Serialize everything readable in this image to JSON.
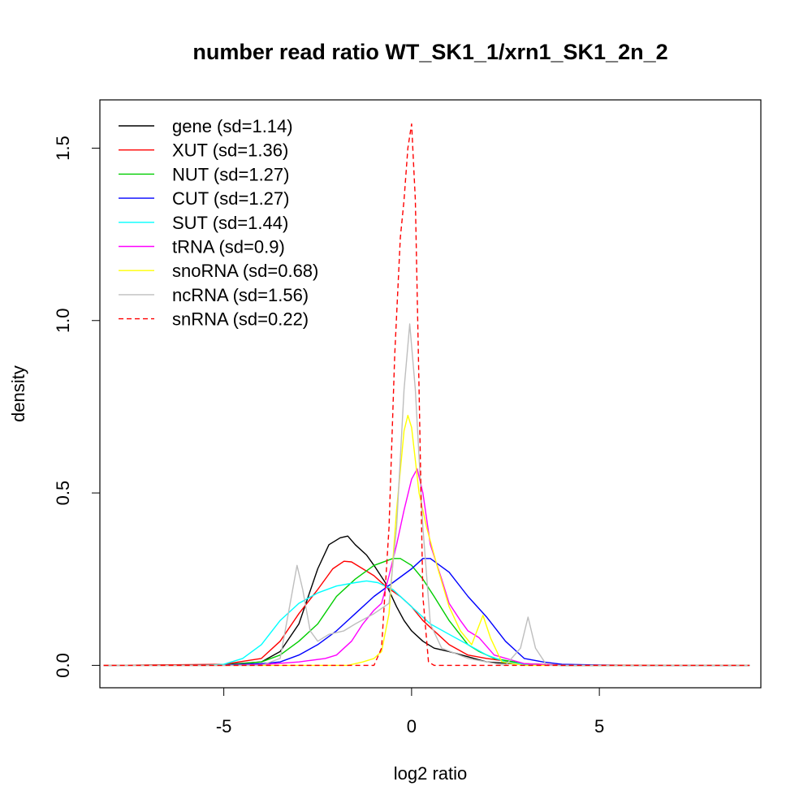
{
  "chart_data": {
    "type": "line",
    "title": "number read ratio WT_SK1_1/xrn1_SK1_2n_2",
    "xlabel": "log2 ratio",
    "ylabel": "density",
    "xlim": [
      -8.3,
      9.3
    ],
    "ylim": [
      -0.065,
      1.64
    ],
    "x_ticks": [
      -5,
      0,
      5
    ],
    "x_tick_labels": [
      "-5",
      "0",
      "5"
    ],
    "y_ticks": [
      0.0,
      0.5,
      1.0,
      1.5
    ],
    "y_tick_labels": [
      "0.0",
      "0.5",
      "1.0",
      "1.5"
    ],
    "grid": false,
    "legend_position": "top-left",
    "series": [
      {
        "name": "gene (sd=1.14)",
        "color": "#000000",
        "dash": "solid",
        "points": [
          [
            -8.2,
            0
          ],
          [
            -5,
            0.002
          ],
          [
            -4,
            0.01
          ],
          [
            -3.5,
            0.04
          ],
          [
            -3,
            0.12
          ],
          [
            -2.5,
            0.28
          ],
          [
            -2.2,
            0.35
          ],
          [
            -1.9,
            0.37
          ],
          [
            -1.7,
            0.375
          ],
          [
            -1.5,
            0.35
          ],
          [
            -1.2,
            0.32
          ],
          [
            -1,
            0.29
          ],
          [
            -0.7,
            0.24
          ],
          [
            -0.4,
            0.17
          ],
          [
            -0.2,
            0.13
          ],
          [
            0,
            0.1
          ],
          [
            0.3,
            0.07
          ],
          [
            0.6,
            0.05
          ],
          [
            1,
            0.04
          ],
          [
            1.5,
            0.025
          ],
          [
            2,
            0.01
          ],
          [
            3,
            0.002
          ],
          [
            4,
            0
          ],
          [
            9,
            0
          ]
        ]
      },
      {
        "name": "XUT (sd=1.36)",
        "color": "#ff0000",
        "dash": "solid",
        "points": [
          [
            -8.2,
            0
          ],
          [
            -5,
            0.003
          ],
          [
            -4,
            0.02
          ],
          [
            -3.5,
            0.07
          ],
          [
            -3,
            0.15
          ],
          [
            -2.5,
            0.22
          ],
          [
            -2.1,
            0.28
          ],
          [
            -1.8,
            0.302
          ],
          [
            -1.6,
            0.3
          ],
          [
            -1.3,
            0.28
          ],
          [
            -1,
            0.26
          ],
          [
            -0.7,
            0.23
          ],
          [
            -0.3,
            0.2
          ],
          [
            0,
            0.17
          ],
          [
            0.3,
            0.13
          ],
          [
            0.7,
            0.09
          ],
          [
            1,
            0.06
          ],
          [
            1.5,
            0.03
          ],
          [
            2,
            0.02
          ],
          [
            3,
            0.005
          ],
          [
            4,
            0.001
          ],
          [
            9,
            0
          ]
        ]
      },
      {
        "name": "NUT (sd=1.27)",
        "color": "#00cd00",
        "dash": "solid",
        "points": [
          [
            -8.2,
            0
          ],
          [
            -5,
            0.001
          ],
          [
            -4,
            0.01
          ],
          [
            -3.5,
            0.03
          ],
          [
            -3,
            0.07
          ],
          [
            -2.5,
            0.12
          ],
          [
            -2,
            0.2
          ],
          [
            -1.5,
            0.25
          ],
          [
            -1,
            0.29
          ],
          [
            -0.5,
            0.31
          ],
          [
            -0.3,
            0.31
          ],
          [
            0,
            0.29
          ],
          [
            0.3,
            0.25
          ],
          [
            0.6,
            0.2
          ],
          [
            1,
            0.13
          ],
          [
            1.5,
            0.06
          ],
          [
            1.8,
            0.04
          ],
          [
            2.2,
            0.02
          ],
          [
            3,
            0.005
          ],
          [
            4,
            0
          ],
          [
            9,
            0
          ]
        ]
      },
      {
        "name": "CUT (sd=1.27)",
        "color": "#0000ff",
        "dash": "solid",
        "points": [
          [
            -8.2,
            0
          ],
          [
            -5,
            0.001
          ],
          [
            -4,
            0.005
          ],
          [
            -3.5,
            0.01
          ],
          [
            -3,
            0.03
          ],
          [
            -2.5,
            0.06
          ],
          [
            -2,
            0.1
          ],
          [
            -1.5,
            0.15
          ],
          [
            -1,
            0.2
          ],
          [
            -0.5,
            0.24
          ],
          [
            0,
            0.28
          ],
          [
            0.3,
            0.31
          ],
          [
            0.5,
            0.31
          ],
          [
            1,
            0.27
          ],
          [
            1.5,
            0.2
          ],
          [
            2,
            0.14
          ],
          [
            2.5,
            0.07
          ],
          [
            3,
            0.02
          ],
          [
            3.5,
            0.01
          ],
          [
            4,
            0.003
          ],
          [
            5,
            0.001
          ],
          [
            6,
            0
          ],
          [
            9,
            0
          ]
        ]
      },
      {
        "name": "SUT (sd=1.44)",
        "color": "#00ffff",
        "dash": "solid",
        "points": [
          [
            -8.2,
            0
          ],
          [
            -5.5,
            0
          ],
          [
            -5,
            0.003
          ],
          [
            -4.5,
            0.02
          ],
          [
            -4,
            0.06
          ],
          [
            -3.5,
            0.13
          ],
          [
            -3,
            0.18
          ],
          [
            -2.5,
            0.21
          ],
          [
            -2,
            0.23
          ],
          [
            -1.5,
            0.24
          ],
          [
            -1.2,
            0.245
          ],
          [
            -0.9,
            0.24
          ],
          [
            -0.5,
            0.22
          ],
          [
            -0.2,
            0.19
          ],
          [
            0.1,
            0.16
          ],
          [
            0.5,
            0.12
          ],
          [
            1,
            0.09
          ],
          [
            1.5,
            0.06
          ],
          [
            2,
            0.03
          ],
          [
            2.5,
            0.01
          ],
          [
            3,
            0.003
          ],
          [
            4,
            0
          ],
          [
            9,
            0
          ]
        ]
      },
      {
        "name": "tRNA (sd=0.9)",
        "color": "#ff00ff",
        "dash": "solid",
        "points": [
          [
            -8.2,
            0
          ],
          [
            -5,
            0
          ],
          [
            -4,
            0.002
          ],
          [
            -3,
            0.01
          ],
          [
            -2.3,
            0.02
          ],
          [
            -2,
            0.03
          ],
          [
            -1.6,
            0.07
          ],
          [
            -1.3,
            0.12
          ],
          [
            -1,
            0.16
          ],
          [
            -0.8,
            0.18
          ],
          [
            -0.6,
            0.26
          ],
          [
            -0.4,
            0.35
          ],
          [
            -0.2,
            0.45
          ],
          [
            0,
            0.54
          ],
          [
            0.15,
            0.57
          ],
          [
            0.3,
            0.5
          ],
          [
            0.5,
            0.35
          ],
          [
            0.8,
            0.25
          ],
          [
            1,
            0.18
          ],
          [
            1.3,
            0.13
          ],
          [
            1.5,
            0.1
          ],
          [
            1.8,
            0.08
          ],
          [
            2.2,
            0.03
          ],
          [
            3,
            0.005
          ],
          [
            4,
            0
          ],
          [
            9,
            0
          ]
        ]
      },
      {
        "name": "snoRNA (sd=0.68)",
        "color": "#ffff00",
        "dash": "solid",
        "points": [
          [
            -8.2,
            0
          ],
          [
            -1.7,
            0
          ],
          [
            -1.3,
            0.01
          ],
          [
            -1,
            0.02
          ],
          [
            -0.8,
            0.04
          ],
          [
            -0.6,
            0.15
          ],
          [
            -0.4,
            0.45
          ],
          [
            -0.2,
            0.68
          ],
          [
            -0.1,
            0.725
          ],
          [
            0,
            0.69
          ],
          [
            0.2,
            0.5
          ],
          [
            0.4,
            0.4
          ],
          [
            0.7,
            0.28
          ],
          [
            1,
            0.17
          ],
          [
            1.3,
            0.1
          ],
          [
            1.6,
            0.06
          ],
          [
            1.9,
            0.145
          ],
          [
            2.1,
            0.08
          ],
          [
            2.4,
            0.01
          ],
          [
            3,
            0
          ],
          [
            9,
            0
          ]
        ]
      },
      {
        "name": "ncRNA (sd=1.56)",
        "color": "#bebebe",
        "dash": "solid",
        "points": [
          [
            -8.2,
            0
          ],
          [
            -4,
            0
          ],
          [
            -3.5,
            0.02
          ],
          [
            -3.2,
            0.2
          ],
          [
            -3.05,
            0.29
          ],
          [
            -2.9,
            0.22
          ],
          [
            -2.7,
            0.1
          ],
          [
            -2.5,
            0.07
          ],
          [
            -2.2,
            0.09
          ],
          [
            -1.8,
            0.1
          ],
          [
            -1.5,
            0.12
          ],
          [
            -1,
            0.15
          ],
          [
            -0.6,
            0.18
          ],
          [
            -0.4,
            0.4
          ],
          [
            -0.2,
            0.8
          ],
          [
            -0.05,
            0.99
          ],
          [
            0.1,
            0.8
          ],
          [
            0.3,
            0.4
          ],
          [
            0.5,
            0.12
          ],
          [
            0.8,
            0.05
          ],
          [
            1.5,
            0.02
          ],
          [
            2.5,
            0
          ],
          [
            2.9,
            0.05
          ],
          [
            3.1,
            0.14
          ],
          [
            3.3,
            0.05
          ],
          [
            3.6,
            0
          ],
          [
            9,
            0
          ]
        ]
      },
      {
        "name": "snRNA (sd=0.22)",
        "color": "#ff0000",
        "dash": "dashed",
        "points": [
          [
            -8.2,
            0
          ],
          [
            -1,
            0
          ],
          [
            -0.8,
            0.05
          ],
          [
            -0.6,
            0.4
          ],
          [
            -0.45,
            0.9
          ],
          [
            -0.3,
            1.24
          ],
          [
            -0.2,
            1.35
          ],
          [
            -0.1,
            1.5
          ],
          [
            0,
            1.57
          ],
          [
            0.1,
            1.35
          ],
          [
            0.2,
            0.8
          ],
          [
            0.3,
            0.2
          ],
          [
            0.45,
            0.01
          ],
          [
            0.6,
            0
          ],
          [
            9,
            0
          ]
        ]
      }
    ]
  }
}
